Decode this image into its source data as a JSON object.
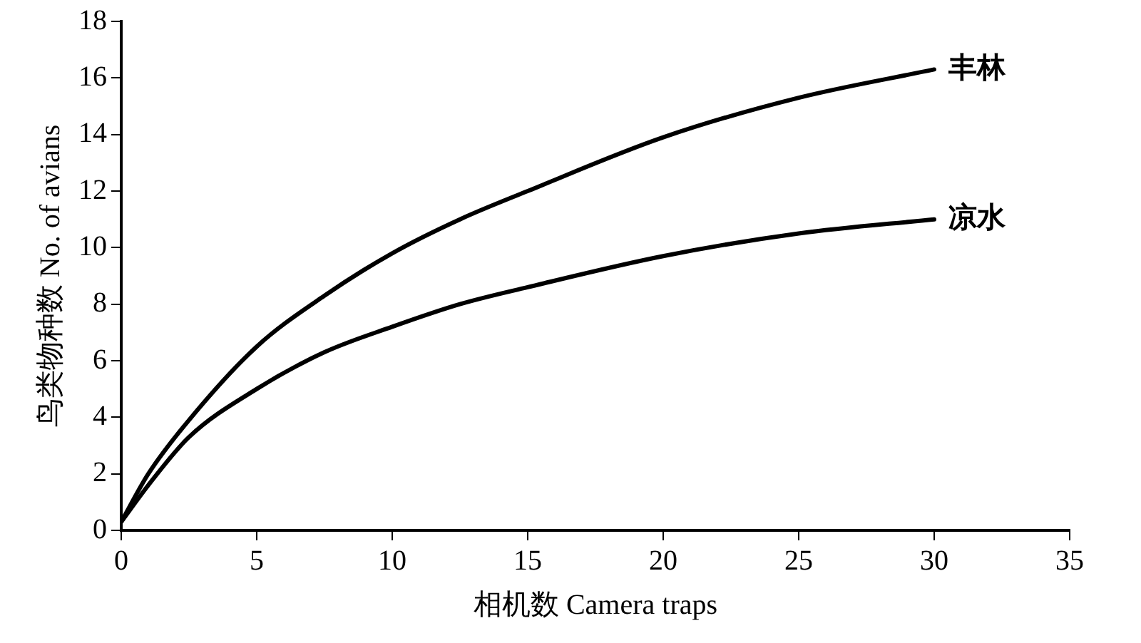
{
  "chart_data": {
    "type": "line",
    "xlabel": "相机数 Camera traps",
    "ylabel": "鸟类物种数 No. of avians",
    "xlim": [
      0,
      35
    ],
    "xticks": [
      0,
      5,
      10,
      15,
      20,
      25,
      30,
      35
    ],
    "ylim": [
      0,
      18
    ],
    "yticks": [
      0,
      2,
      4,
      6,
      8,
      10,
      12,
      14,
      16,
      18
    ],
    "grid": false,
    "legend": false,
    "marker": "none",
    "line_style": "solid",
    "x": [
      0,
      1,
      2.5,
      5,
      7.5,
      10,
      12.5,
      15,
      20,
      25,
      30
    ],
    "series": [
      {
        "name": "丰林",
        "color": "#000000",
        "values": [
          0.3,
          2.0,
          3.9,
          6.5,
          8.3,
          9.8,
          11.0,
          12.0,
          13.9,
          15.3,
          16.3
        ]
      },
      {
        "name": "凉水",
        "color": "#000000",
        "values": [
          0.3,
          1.6,
          3.3,
          5.0,
          6.3,
          7.2,
          8.0,
          8.6,
          9.7,
          10.5,
          11.0
        ]
      }
    ]
  }
}
